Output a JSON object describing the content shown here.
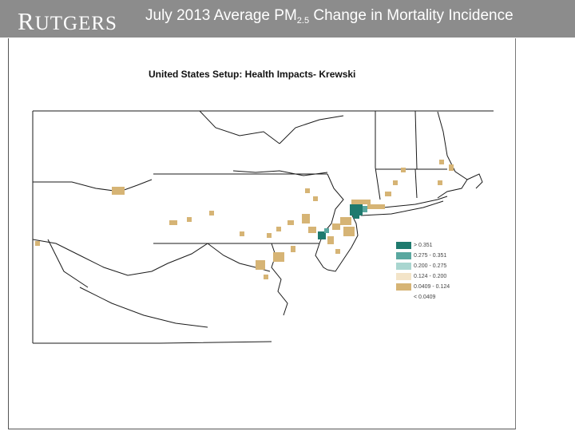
{
  "header": {
    "logo_first": "R",
    "logo_rest": "UTGERS",
    "title_main": "July 2013 Average PM",
    "title_sub": "2.5",
    "title_rest": " Change in Mortality Incidence"
  },
  "map": {
    "title": "United States Setup: Health Impacts- Krewski"
  },
  "legend": {
    "items": [
      {
        "label": "> 0.351",
        "color": "#1f7a6e"
      },
      {
        "label": "0.275 - 0.351",
        "color": "#5aa8a0"
      },
      {
        "label": "0.200 - 0.275",
        "color": "#a9d6d0"
      },
      {
        "label": "0.124 - 0.200",
        "color": "#f3e4c8"
      },
      {
        "label": "0.0409 - 0.124",
        "color": "#d6b475"
      },
      {
        "label": "< 0.0409",
        "color": "#ffffff"
      }
    ]
  },
  "colors": {
    "header_bg": "#8c8c8c",
    "boundary": "#1a1a1a",
    "highest": "#1f7a6e",
    "high": "#5aa8a0",
    "low": "#d6b475"
  }
}
